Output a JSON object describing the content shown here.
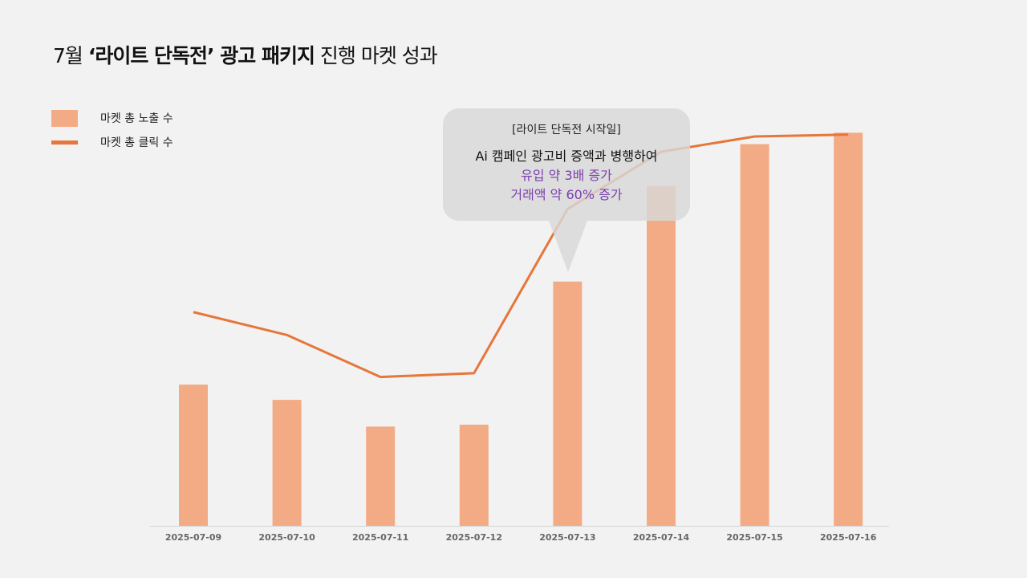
{
  "title": {
    "prefix": "7월 ",
    "bold": "‘라이트 단독전’ 광고 패키지",
    "suffix": " 진행 마켓 성과"
  },
  "legend": {
    "bar_label": "마켓 총 노출 수",
    "line_label": "마켓 총 클릭 수"
  },
  "callout": {
    "line1": "[라이트 단독전 시작일]",
    "line2": "Ai 캠페인 광고비 증액과 병행하여",
    "line3": "유입 약 3배 증가",
    "line4": "거래액 약 60% 증가"
  },
  "colors": {
    "bar": "#f3ab86",
    "line": "#e6763a",
    "highlight_text": "#7b3fae"
  },
  "chart_data": {
    "type": "bar",
    "categories": [
      "2025-07-09",
      "2025-07-10",
      "2025-07-11",
      "2025-07-12",
      "2025-07-13",
      "2025-07-14",
      "2025-07-15",
      "2025-07-16"
    ],
    "series": [
      {
        "name": "마켓 총 노출 수",
        "type": "bar",
        "values": [
          37,
          33,
          26,
          26.5,
          64,
          89,
          100,
          103
        ]
      },
      {
        "name": "마켓 총 클릭 수",
        "type": "line",
        "values": [
          56,
          50,
          39,
          40,
          83,
          98,
          102,
          102.5
        ]
      }
    ],
    "ylim": [
      0,
      110
    ],
    "grid": false,
    "legend_position": "top-left"
  }
}
